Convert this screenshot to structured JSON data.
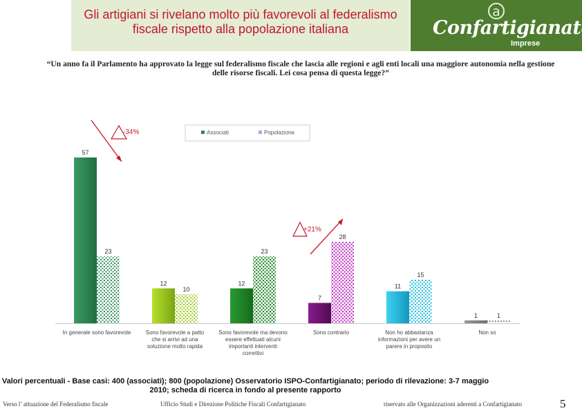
{
  "header": {
    "title": "Gli artigiani si rivelano molto più favorevoli al federalismo fiscale rispetto alla popolazione italiana",
    "logo_text": "Confartigianato",
    "logo_sub": "Imprese",
    "logo_mark": "a"
  },
  "question": "“Un anno fa il Parlamento ha approvato la legge sul federalismo fiscale che lascia alle regioni e agli enti locali una maggiore autonomia nella gestione delle risorse fiscali. Lei cosa pensa di questa legge?”",
  "colors": {
    "title_red": "#c0172c",
    "header_green": "#4e7d2f",
    "header_light": "#e4ecd3",
    "annotation_red": "#c41a2a"
  },
  "chart_data": {
    "type": "bar",
    "categories": [
      "In generale sono favorevole",
      "Sono favorevole a patto che si arrivi ad una soluzione molto rapida",
      "Sono favorevole ma devono essere effettuati alcuni importanti interventi correttivi",
      "Sono contrario",
      "Non ho abbastanza informazioni per avere un parere in proposito",
      "Non so"
    ],
    "category_lines": [
      [
        "In generale sono favorevole"
      ],
      [
        "Sono favorevole a patto",
        "che si arrivi ad una",
        "soluzione molto rapida"
      ],
      [
        "Sono favorevole ma devono",
        "essere effettuati alcuni",
        "importanti interventi",
        "correttivi"
      ],
      [
        "Sono contrario"
      ],
      [
        "Non ho abbastanza",
        "informazioni per avere un",
        "parere in proposito"
      ],
      [
        "Non so"
      ]
    ],
    "series": [
      {
        "name": "Associati",
        "values": [
          57,
          12,
          12,
          7,
          11,
          1
        ],
        "colors": [
          "#2e8b57",
          "#9bc81a",
          "#1f8a26",
          "#6b0f6e",
          "#1bb9dd",
          "#8a8a8a"
        ]
      },
      {
        "name": "Popolazione",
        "values": [
          23,
          10,
          23,
          28,
          15,
          1
        ],
        "colors": [
          "#2e8b57",
          "#9bc81a",
          "#1f8a26",
          "#c23cc4",
          "#1bb9dd",
          "#8a8a8a"
        ]
      }
    ],
    "legend": {
      "position": "top",
      "entries": [
        "Associati",
        "Popolazione"
      ],
      "colors": [
        "#2e8b57",
        "#c8a0d8"
      ]
    },
    "annotations": [
      {
        "text": "-34%",
        "category_index": 0,
        "direction": "down"
      },
      {
        "text": "+21%",
        "category_index": 3,
        "direction": "up"
      }
    ],
    "ylim": [
      0,
      60
    ],
    "grid": false,
    "xlabel": "",
    "ylabel": ""
  },
  "source_note": "Valori percentuali - Base casi: 400 (associati); 800 (popolazione) Osservatorio ISPO-Confartigianato;   periodo di rilevazione: 3-7 maggio 2010; scheda di ricerca in fondo al presente rapporto",
  "footer": {
    "left": "Verso l’ attuazione del Federalismo fiscale",
    "center": "Ufficio Studi e  Direzione Politiche Fiscali Confartigianato",
    "right": "riservato alle Organizzazioni aderenti a Confartigianato",
    "page_number": "5"
  }
}
